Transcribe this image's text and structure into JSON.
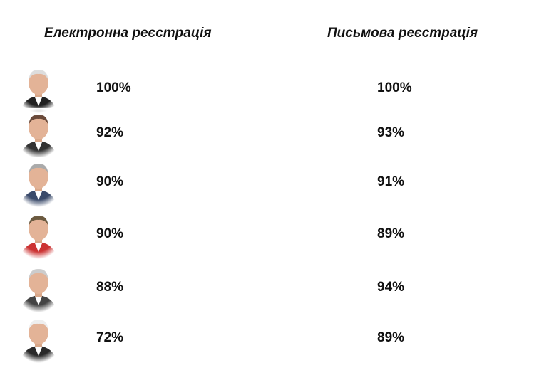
{
  "table": {
    "headers": [
      "Електронна реєстрація",
      "Письмова реєстрація"
    ],
    "rows": [
      [
        "100%",
        "100%"
      ],
      [
        "92%",
        "93%"
      ],
      [
        "90%",
        "91%"
      ],
      [
        "90%",
        "89%"
      ],
      [
        "88%",
        "94%"
      ],
      [
        "72%",
        "89%"
      ]
    ]
  }
}
